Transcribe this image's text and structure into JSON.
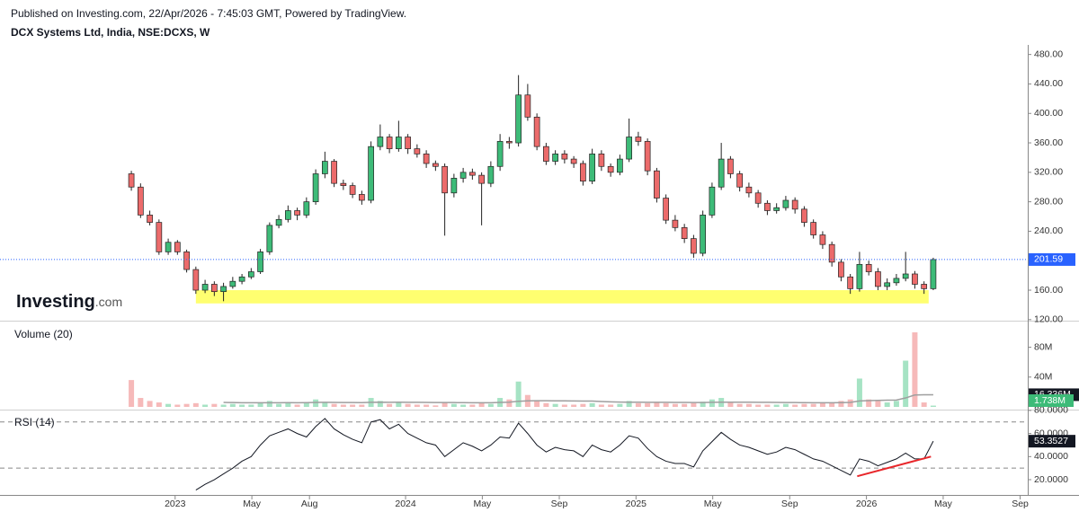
{
  "header": {
    "published": "Published on Investing.com, 22/Apr/2026 - 7:45:03 GMT, Powered by TradingView.",
    "symbol": "DCX Systems Ltd, India, NSE:DCXS, W"
  },
  "logo": {
    "brand": "Investing",
    "suffix": ".com"
  },
  "chart_data": [
    {
      "type": "candlestick",
      "x": [
        2022.81,
        2022.85,
        2022.89,
        2022.93,
        2022.97,
        2023.01,
        2023.05,
        2023.09,
        2023.13,
        2023.17,
        2023.21,
        2023.25,
        2023.29,
        2023.33,
        2023.37,
        2023.41,
        2023.45,
        2023.49,
        2023.53,
        2023.57,
        2023.61,
        2023.65,
        2023.69,
        2023.73,
        2023.77,
        2023.81,
        2023.85,
        2023.89,
        2023.93,
        2023.97,
        2024.01,
        2024.05,
        2024.09,
        2024.13,
        2024.17,
        2024.21,
        2024.25,
        2024.29,
        2024.33,
        2024.37,
        2024.41,
        2024.45,
        2024.49,
        2024.53,
        2024.57,
        2024.61,
        2024.65,
        2024.69,
        2024.73,
        2024.77,
        2024.81,
        2024.85,
        2024.89,
        2024.93,
        2024.97,
        2025.01,
        2025.05,
        2025.09,
        2025.13,
        2025.17,
        2025.21,
        2025.25,
        2025.29,
        2025.33,
        2025.37,
        2025.41,
        2025.45,
        2025.49,
        2025.53,
        2025.57,
        2025.61,
        2025.65,
        2025.69,
        2025.73,
        2025.77,
        2025.81,
        2025.85,
        2025.89,
        2025.93,
        2025.97,
        2026.01,
        2026.05,
        2026.09,
        2026.13,
        2026.17,
        2026.21,
        2026.25,
        2026.29
      ],
      "ohlc": [
        [
          318,
          322,
          295,
          300
        ],
        [
          300,
          305,
          258,
          262
        ],
        [
          262,
          268,
          248,
          252
        ],
        [
          252,
          256,
          208,
          212
        ],
        [
          212,
          230,
          208,
          225
        ],
        [
          225,
          228,
          208,
          212
        ],
        [
          212,
          215,
          184,
          188
        ],
        [
          188,
          192,
          155,
          160
        ],
        [
          160,
          174,
          156,
          168
        ],
        [
          168,
          172,
          152,
          158
        ],
        [
          158,
          170,
          145,
          165
        ],
        [
          165,
          178,
          162,
          172
        ],
        [
          172,
          182,
          168,
          178
        ],
        [
          178,
          190,
          175,
          185
        ],
        [
          185,
          216,
          182,
          212
        ],
        [
          212,
          252,
          208,
          248
        ],
        [
          248,
          262,
          244,
          256
        ],
        [
          256,
          275,
          252,
          268
        ],
        [
          268,
          272,
          255,
          262
        ],
        [
          262,
          286,
          258,
          280
        ],
        [
          280,
          324,
          276,
          318
        ],
        [
          318,
          348,
          312,
          335
        ],
        [
          335,
          338,
          300,
          305
        ],
        [
          305,
          310,
          296,
          302
        ],
        [
          302,
          306,
          285,
          290
        ],
        [
          290,
          295,
          276,
          282
        ],
        [
          282,
          362,
          278,
          355
        ],
        [
          355,
          385,
          350,
          368
        ],
        [
          368,
          372,
          346,
          352
        ],
        [
          352,
          390,
          348,
          368
        ],
        [
          368,
          372,
          345,
          352
        ],
        [
          352,
          358,
          340,
          345
        ],
        [
          345,
          350,
          326,
          332
        ],
        [
          332,
          336,
          322,
          328
        ],
        [
          328,
          332,
          234,
          292
        ],
        [
          292,
          318,
          286,
          312
        ],
        [
          312,
          326,
          306,
          320
        ],
        [
          320,
          325,
          310,
          316
        ],
        [
          316,
          320,
          248,
          305
        ],
        [
          305,
          335,
          300,
          328
        ],
        [
          328,
          372,
          322,
          362
        ],
        [
          362,
          368,
          352,
          360
        ],
        [
          360,
          452,
          355,
          425
        ],
        [
          425,
          440,
          390,
          395
        ],
        [
          395,
          400,
          350,
          355
        ],
        [
          355,
          360,
          330,
          335
        ],
        [
          335,
          350,
          330,
          345
        ],
        [
          345,
          350,
          332,
          338
        ],
        [
          338,
          342,
          326,
          332
        ],
        [
          332,
          336,
          302,
          308
        ],
        [
          308,
          352,
          304,
          345
        ],
        [
          345,
          350,
          322,
          328
        ],
        [
          328,
          332,
          314,
          320
        ],
        [
          320,
          344,
          316,
          338
        ],
        [
          338,
          393,
          334,
          368
        ],
        [
          368,
          375,
          356,
          362
        ],
        [
          362,
          366,
          316,
          322
        ],
        [
          322,
          326,
          279,
          285
        ],
        [
          285,
          290,
          250,
          255
        ],
        [
          255,
          262,
          240,
          245
        ],
        [
          245,
          250,
          224,
          230
        ],
        [
          230,
          235,
          204,
          210
        ],
        [
          210,
          268,
          206,
          262
        ],
        [
          262,
          306,
          258,
          300
        ],
        [
          300,
          360,
          296,
          338
        ],
        [
          338,
          342,
          312,
          318
        ],
        [
          318,
          322,
          294,
          300
        ],
        [
          300,
          306,
          286,
          292
        ],
        [
          292,
          296,
          272,
          278
        ],
        [
          278,
          282,
          262,
          268
        ],
        [
          268,
          278,
          264,
          272
        ],
        [
          272,
          288,
          268,
          282
        ],
        [
          282,
          286,
          264,
          270
        ],
        [
          270,
          274,
          246,
          252
        ],
        [
          252,
          256,
          230,
          235
        ],
        [
          235,
          240,
          216,
          222
        ],
        [
          222,
          226,
          192,
          198
        ],
        [
          198,
          202,
          172,
          178
        ],
        [
          178,
          182,
          155,
          162
        ],
        [
          162,
          212,
          158,
          195
        ],
        [
          195,
          200,
          180,
          185
        ],
        [
          185,
          190,
          160,
          165
        ],
        [
          165,
          176,
          160,
          170
        ],
        [
          170,
          182,
          166,
          176
        ],
        [
          176,
          212,
          172,
          182
        ],
        [
          182,
          186,
          162,
          168
        ],
        [
          168,
          172,
          155,
          162
        ],
        [
          162,
          204,
          160,
          201.59
        ]
      ],
      "up_color": "#3dbb78",
      "down_color": "#ec6b6b",
      "last_color": "#2962ff",
      "xlim": [
        2022.24,
        2026.7
      ],
      "xticks": [
        2023,
        {
          "value": 2023.333,
          "label": "May"
        },
        {
          "value": 2023.583,
          "label": "Aug"
        },
        2024,
        {
          "value": 2024.333,
          "label": "May"
        },
        {
          "value": 2024.667,
          "label": "Sep"
        },
        2025,
        {
          "value": 2025.333,
          "label": "May"
        },
        {
          "value": 2025.667,
          "label": "Sep"
        },
        2026,
        {
          "value": 2026.333,
          "label": "May"
        },
        {
          "value": 2026.667,
          "label": "Sep"
        }
      ],
      "ylim": [
        121,
        493
      ],
      "yticks": [
        {
          "value": 120,
          "label": "120.00"
        },
        {
          "value": 160,
          "label": "160.00"
        },
        {
          "value": 200,
          "label": "200.00"
        },
        {
          "value": 240,
          "label": "240.00"
        },
        {
          "value": 280,
          "label": "280.00"
        },
        {
          "value": 320,
          "label": "320.00"
        },
        {
          "value": 360,
          "label": "360.00"
        },
        {
          "value": 400,
          "label": "400.00"
        },
        {
          "value": 440,
          "label": "440.00"
        },
        {
          "value": 480,
          "label": "480.00"
        }
      ],
      "support_zone": {
        "x": [
          2023.09,
          2026.27
        ],
        "y": [
          142,
          160
        ],
        "color": "#ffff70"
      }
    },
    {
      "type": "bar",
      "title": "Volume (20)",
      "values": [
        36000000,
        12000000,
        8000000,
        6000000,
        4000000,
        3000000,
        4000000,
        5000000,
        3000000,
        4000000,
        3000000,
        4000000,
        3000000,
        3000000,
        5000000,
        8000000,
        4000000,
        5000000,
        3000000,
        6000000,
        10000000,
        6000000,
        4000000,
        3000000,
        3000000,
        3000000,
        12000000,
        8000000,
        4000000,
        6000000,
        4000000,
        3000000,
        3000000,
        2000000,
        6000000,
        4000000,
        3000000,
        3000000,
        5000000,
        4000000,
        12000000,
        10000000,
        34000000,
        16000000,
        8000000,
        5000000,
        4000000,
        3000000,
        3000000,
        4000000,
        5000000,
        3000000,
        3000000,
        4000000,
        8000000,
        5000000,
        5000000,
        6000000,
        5000000,
        4000000,
        4000000,
        5000000,
        7000000,
        10000000,
        12000000,
        6000000,
        4000000,
        4000000,
        3000000,
        3000000,
        3000000,
        4000000,
        3000000,
        4000000,
        4000000,
        5000000,
        6000000,
        8000000,
        10000000,
        38000000,
        10000000,
        8000000,
        6000000,
        8000000,
        62000000,
        100000000,
        6000000,
        1738000
      ],
      "up_color": "#a6e3c4",
      "down_color": "#f6b9b9",
      "last_color": "#3dbb78",
      "last_label": "1.738M",
      "ma": {
        "values": [
          null,
          null,
          null,
          null,
          null,
          null,
          null,
          null,
          null,
          null,
          6000000,
          5800000,
          5600000,
          5500000,
          5500000,
          5600000,
          5600000,
          5700000,
          5600000,
          5700000,
          6000000,
          6100000,
          6000000,
          5900000,
          5800000,
          5700000,
          6100000,
          6300000,
          6200000,
          6300000,
          6200000,
          6100000,
          6000000,
          5800000,
          5900000,
          5800000,
          5700000,
          5600000,
          5600000,
          5600000,
          6000000,
          6300000,
          7600000,
          8200000,
          8300000,
          8300000,
          8200000,
          8100000,
          8000000,
          7900000,
          7800000,
          7200000,
          6800000,
          6500000,
          6400000,
          6300000,
          6200000,
          6200000,
          6100000,
          6000000,
          6000000,
          5900000,
          5900000,
          6100000,
          6400000,
          6400000,
          6400000,
          6300000,
          6200000,
          6100000,
          6000000,
          5900000,
          5800000,
          5700000,
          5600000,
          5600000,
          5600000,
          5700000,
          6000000,
          8000000,
          8500000,
          8800000,
          9000000,
          9200000,
          12000000,
          16000000,
          16200000,
          16336000
        ],
        "color": "#9e9e9e",
        "last_label": "16.336M"
      },
      "ylim": [
        0,
        112000000
      ],
      "yticks": [
        {
          "value": 40000000,
          "label": "40M"
        },
        {
          "value": 80000000,
          "label": "80M"
        }
      ]
    },
    {
      "type": "line",
      "title": "RSI (14)",
      "values": [
        null,
        null,
        null,
        null,
        null,
        null,
        null,
        11,
        16,
        20,
        25,
        30,
        36,
        40,
        50,
        58,
        61,
        64,
        60,
        57,
        66,
        73,
        64,
        59,
        55,
        52,
        70,
        72,
        64,
        68,
        60,
        56,
        52,
        50,
        40,
        46,
        52,
        49,
        45,
        50,
        57,
        56,
        69,
        60,
        50,
        44,
        48,
        46,
        45,
        40,
        50,
        46,
        44,
        50,
        58,
        56,
        47,
        40,
        36,
        34,
        34,
        31,
        45,
        53,
        61,
        55,
        50,
        48,
        45,
        42,
        44,
        48,
        46,
        42,
        38,
        36,
        32,
        28,
        24,
        38,
        36,
        32,
        35,
        38,
        43,
        38,
        38,
        53.3527
      ],
      "color": "#131722",
      "bands": [
        30,
        70
      ],
      "trendline": {
        "x": [
          2025.96,
          2026.28
        ],
        "values": [
          23,
          40
        ],
        "color": "#e8262a"
      },
      "ylim": [
        6,
        81.5
      ],
      "yticks": [
        {
          "value": 20,
          "label": "20.0000"
        },
        {
          "value": 40,
          "label": "40.0000"
        },
        {
          "value": 60,
          "label": "60.0000"
        },
        {
          "value": 80,
          "label": "80.0000"
        }
      ]
    }
  ]
}
